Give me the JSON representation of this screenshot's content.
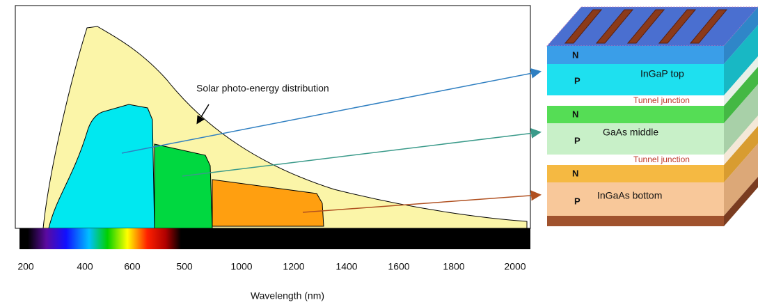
{
  "annotation": "Solar photo-energy distribution",
  "x_axis": {
    "label": "Wavelength (nm)",
    "ticks": [
      "200",
      "400",
      "600",
      "500",
      "1000",
      "1200",
      "1400",
      "1600",
      "1800",
      "2000"
    ]
  },
  "cell": {
    "layers": [
      {
        "name": "InGaP top",
        "n": "N",
        "p": "P"
      },
      {
        "name": "GaAs middle",
        "n": "N",
        "p": "P"
      },
      {
        "name": "InGaAs bottom",
        "n": "N",
        "p": "P"
      }
    ],
    "tunnel_junctions": [
      "Tunnel junction",
      "Tunnel junction"
    ]
  }
}
